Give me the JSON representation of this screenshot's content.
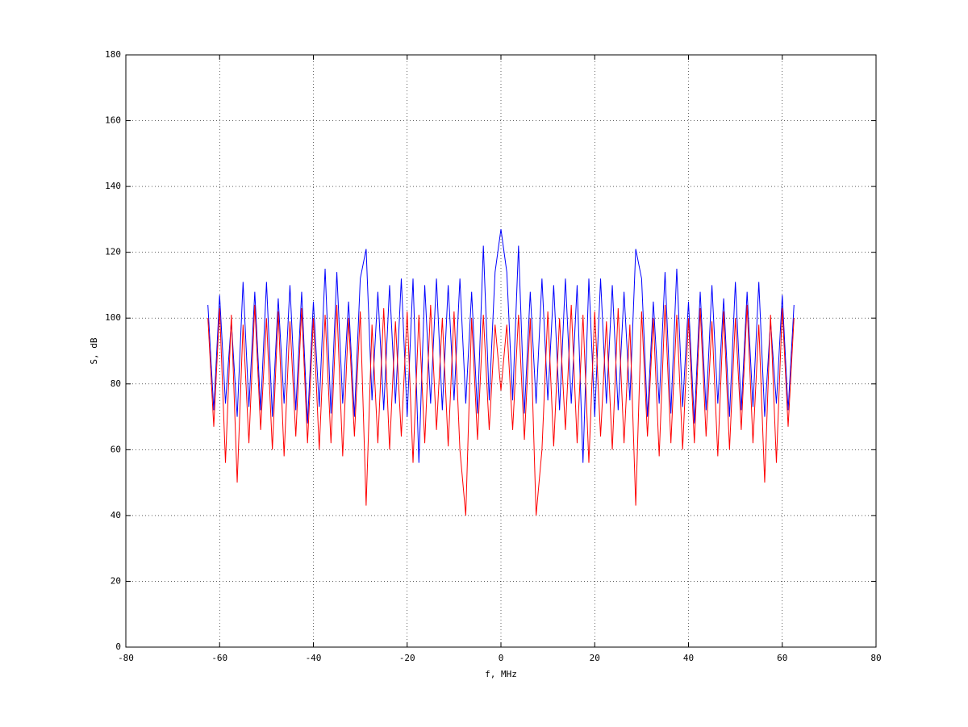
{
  "chart_data": {
    "type": "line",
    "xlabel": "f, MHz",
    "ylabel": "S, dB",
    "x": [
      -62.5,
      -61.25,
      -60,
      -58.75,
      -57.5,
      -56.25,
      -55,
      -53.75,
      -52.5,
      -51.25,
      -50,
      -48.75,
      -47.5,
      -46.25,
      -45,
      -43.75,
      -42.5,
      -41.25,
      -40,
      -38.75,
      -37.5,
      -36.25,
      -35,
      -33.75,
      -32.5,
      -31.25,
      -30,
      -28.75,
      -27.5,
      -26.25,
      -25,
      -23.75,
      -22.5,
      -21.25,
      -20,
      -18.75,
      -17.5,
      -16.25,
      -15,
      -13.75,
      -12.5,
      -11.25,
      -10,
      -8.75,
      -7.5,
      -6.25,
      -5,
      -3.75,
      -2.5,
      -1.25,
      0,
      1.25,
      2.5,
      3.75,
      5,
      6.25,
      7.5,
      8.75,
      10,
      11.25,
      12.5,
      13.75,
      15,
      16.25,
      17.5,
      18.75,
      20,
      21.25,
      22.5,
      23.75,
      25,
      26.25,
      27.5,
      28.75,
      30,
      31.25,
      32.5,
      33.75,
      35,
      36.25,
      37.5,
      38.75,
      40,
      41.25,
      42.5,
      43.75,
      45,
      46.25,
      47.5,
      48.75,
      50,
      51.25,
      52.5,
      53.75,
      55,
      56.25,
      57.5,
      58.75,
      60,
      61.25,
      62.5
    ],
    "series": [
      {
        "color": "#0000ff",
        "values": [
          104,
          72,
          107,
          74,
          99,
          70,
          111,
          73,
          108,
          72,
          111,
          70,
          106,
          74,
          110,
          72,
          108,
          68,
          105,
          73,
          115,
          71,
          114,
          74,
          105,
          70,
          112,
          121,
          75,
          108,
          72,
          110,
          74,
          112,
          70,
          112,
          56,
          110,
          74,
          112,
          72,
          110,
          75,
          112,
          74,
          108,
          71,
          122,
          75,
          114,
          127,
          114,
          75,
          122,
          71,
          108,
          74,
          112,
          75,
          110,
          72,
          112,
          74,
          110,
          56,
          112,
          70,
          112,
          74,
          110,
          72,
          108,
          75,
          121,
          112,
          70,
          105,
          74,
          114,
          71,
          115,
          73,
          105,
          68,
          108,
          72,
          110,
          74,
          106,
          70,
          111,
          72,
          108,
          73,
          111,
          70,
          99,
          74,
          107,
          72,
          104
        ]
      },
      {
        "color": "#ff0000",
        "values": [
          100,
          67,
          103,
          56,
          101,
          50,
          98,
          62,
          104,
          66,
          100,
          60,
          102,
          58,
          99,
          64,
          103,
          62,
          100,
          60,
          101,
          62,
          104,
          58,
          100,
          64,
          102,
          43,
          98,
          62,
          103,
          60,
          99,
          64,
          102,
          56,
          101,
          62,
          104,
          66,
          100,
          61,
          102,
          60,
          40,
          100,
          63,
          101,
          66,
          98,
          78,
          98,
          66,
          101,
          63,
          100,
          40,
          60,
          102,
          61,
          100,
          66,
          104,
          62,
          101,
          56,
          102,
          64,
          99,
          60,
          103,
          62,
          98,
          43,
          102,
          64,
          100,
          58,
          104,
          62,
          101,
          60,
          100,
          62,
          103,
          64,
          99,
          58,
          102,
          60,
          100,
          66,
          104,
          62,
          98,
          50,
          101,
          56,
          103,
          67,
          100
        ]
      }
    ],
    "xlim": [
      -80,
      80
    ],
    "xticks": [
      -80,
      -60,
      -40,
      -20,
      0,
      20,
      40,
      60,
      80
    ],
    "ylim": [
      0,
      180
    ],
    "yticks": [
      0,
      20,
      40,
      60,
      80,
      100,
      120,
      140,
      160,
      180
    ],
    "grid": true
  }
}
